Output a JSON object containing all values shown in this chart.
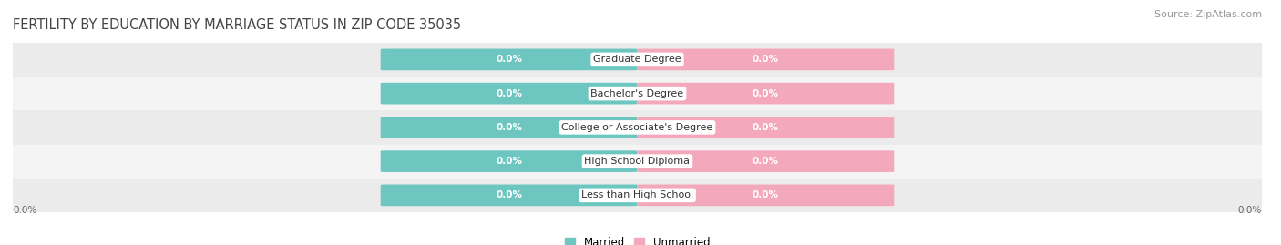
{
  "title": "FERTILITY BY EDUCATION BY MARRIAGE STATUS IN ZIP CODE 35035",
  "source": "Source: ZipAtlas.com",
  "categories": [
    "Less than High School",
    "High School Diploma",
    "College or Associate's Degree",
    "Bachelor's Degree",
    "Graduate Degree"
  ],
  "married_color": "#6ec6c1",
  "unmarried_color": "#f4a8bc",
  "row_colors": [
    "#ebebeb",
    "#f4f4f4",
    "#ebebeb",
    "#f4f4f4",
    "#ebebeb"
  ],
  "married_label": "Married",
  "unmarried_label": "Unmarried",
  "title_fontsize": 10.5,
  "source_fontsize": 8,
  "bar_width": 0.28,
  "bar_height": 0.62,
  "background_color": "#ffffff",
  "axis_label_left": "0.0%",
  "axis_label_right": "0.0%",
  "value_label": "0.0%"
}
